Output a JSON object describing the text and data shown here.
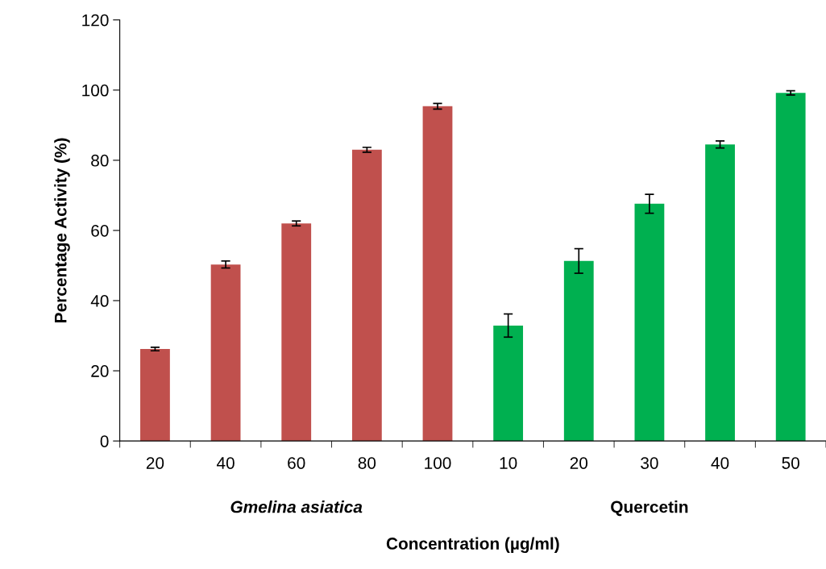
{
  "chart_data": {
    "type": "bar",
    "xlabel": "Concentration (µg/ml)",
    "ylabel": "Percentage Activity (%)",
    "categories": [
      "20",
      "40",
      "60",
      "80",
      "100",
      "10",
      "20",
      "30",
      "40",
      "50"
    ],
    "values": [
      26.2,
      50.3,
      62.0,
      83.0,
      95.4,
      32.9,
      51.3,
      67.6,
      84.5,
      99.2
    ],
    "errors": [
      0.5,
      1.0,
      0.7,
      0.7,
      0.8,
      3.3,
      3.5,
      2.7,
      1.0,
      0.6
    ],
    "colors": [
      "#c0504d",
      "#c0504d",
      "#c0504d",
      "#c0504d",
      "#c0504d",
      "#00b050",
      "#00b050",
      "#00b050",
      "#00b050",
      "#00b050"
    ],
    "annotations": [
      "Gmelina asiatica",
      "Quercetin"
    ],
    "ylim": [
      0,
      120
    ],
    "yticks": [
      0,
      20,
      40,
      60,
      80,
      100,
      120
    ],
    "grid": false,
    "legend": false
  }
}
